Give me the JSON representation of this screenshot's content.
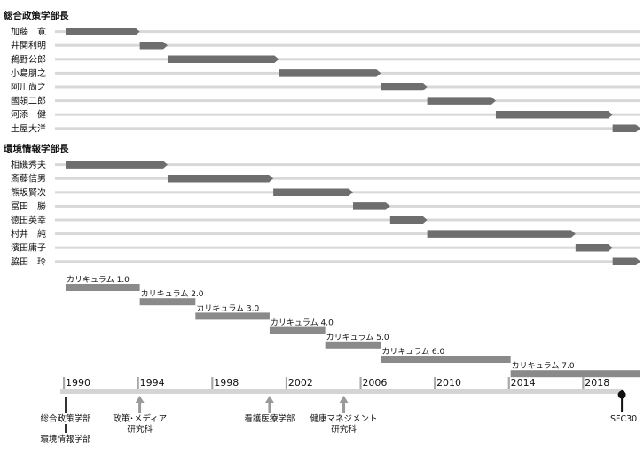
{
  "chart_data": {
    "type": "gantt",
    "xlim": [
      1990,
      2021
    ],
    "colors": {
      "bar": "#6e6e6e",
      "curriculum": "#8a8a8a",
      "track": "#d8d8d8",
      "timeline": "#d4d4d4",
      "tick": "#a8a8a8",
      "arrow": "#9a9a9a",
      "marker": "#111111"
    },
    "groups": [
      {
        "title": "総合政策学部長",
        "rows": [
          {
            "name": "加藤　寛",
            "start": 1990,
            "end": 1994
          },
          {
            "name": "井関利明",
            "start": 1994,
            "end": 1995.5
          },
          {
            "name": "鵜野公郎",
            "start": 1995.5,
            "end": 2001.5
          },
          {
            "name": "小島朋之",
            "start": 2001.5,
            "end": 2007
          },
          {
            "name": "阿川尚之",
            "start": 2007,
            "end": 2009.5
          },
          {
            "name": "國領二郎",
            "start": 2009.5,
            "end": 2013.2
          },
          {
            "name": "河添　健",
            "start": 2013.2,
            "end": 2019.5
          },
          {
            "name": "土屋大洋",
            "start": 2019.5,
            "end": 2021
          }
        ]
      },
      {
        "title": "環境情報学部長",
        "rows": [
          {
            "name": "相磯秀夫",
            "start": 1990,
            "end": 1995.5
          },
          {
            "name": "斎藤信男",
            "start": 1995.5,
            "end": 2001.2
          },
          {
            "name": "熊坂賢次",
            "start": 2001.2,
            "end": 2005.5
          },
          {
            "name": "冨田　勝",
            "start": 2005.5,
            "end": 2007.5
          },
          {
            "name": "徳田英幸",
            "start": 2007.5,
            "end": 2009.5
          },
          {
            "name": "村井　純",
            "start": 2009.5,
            "end": 2017.5
          },
          {
            "name": "濱田庸子",
            "start": 2017.5,
            "end": 2019.5
          },
          {
            "name": "脇田　玲",
            "start": 2019.5,
            "end": 2021
          }
        ]
      }
    ],
    "curricula": [
      {
        "label": "カリキュラム 1.0",
        "start": 1990,
        "end": 1994
      },
      {
        "label": "カリキュラム 2.0",
        "start": 1994,
        "end": 1997
      },
      {
        "label": "カリキュラム 3.0",
        "start": 1997,
        "end": 2001
      },
      {
        "label": "カリキュラム 4.0",
        "start": 2001,
        "end": 2004
      },
      {
        "label": "カリキュラム 5.0",
        "start": 2004,
        "end": 2007
      },
      {
        "label": "カリキュラム 6.0",
        "start": 2007,
        "end": 2014
      },
      {
        "label": "カリキュラム 7.0",
        "start": 2014,
        "end": 2021
      }
    ],
    "axis": {
      "ticks": [
        1990,
        1994,
        1998,
        2002,
        2006,
        2010,
        2014,
        2018
      ],
      "minor_ticks": [
        1990,
        1994,
        1998,
        2002,
        2006,
        2010,
        2014,
        2018,
        2022
      ]
    },
    "events": [
      {
        "year": 1990,
        "labels": [
          "総合政策学部",
          "環境情報学部"
        ],
        "style": "plain"
      },
      {
        "year": 1994,
        "labels": [
          "政策･メディア",
          "研究科"
        ],
        "style": "arrow"
      },
      {
        "year": 2001,
        "labels": [
          "看護医療学部"
        ],
        "style": "arrow"
      },
      {
        "year": 2005,
        "labels": [
          "健康マネジメント",
          "研究科"
        ],
        "style": "arrow"
      },
      {
        "year": 2020,
        "labels": [
          "SFC30"
        ],
        "style": "marker"
      }
    ]
  }
}
